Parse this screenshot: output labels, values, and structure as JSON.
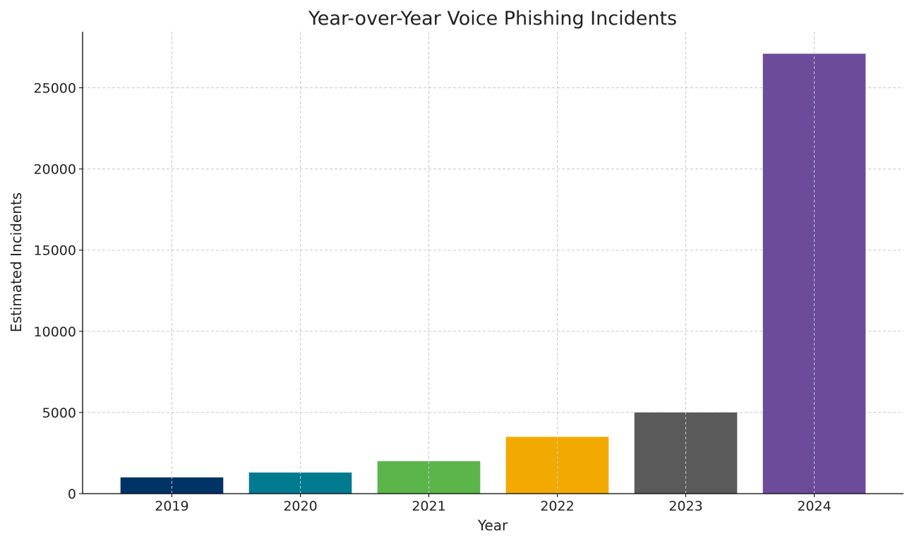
{
  "chart_data": {
    "type": "bar",
    "title": "Year-over-Year Voice Phishing Incidents",
    "xlabel": "Year",
    "ylabel": "Estimated Incidents",
    "categories": [
      "2019",
      "2020",
      "2021",
      "2022",
      "2023",
      "2024"
    ],
    "values": [
      1000,
      1300,
      2000,
      3500,
      5000,
      27100
    ],
    "colors": [
      "#003366",
      "#007b8f",
      "#5bb54a",
      "#f2a900",
      "#5a5a5b",
      "#6c4b9b"
    ],
    "ylim": [
      0,
      28455
    ],
    "yticks": [
      0,
      5000,
      10000,
      15000,
      20000,
      25000
    ],
    "grid": true
  }
}
